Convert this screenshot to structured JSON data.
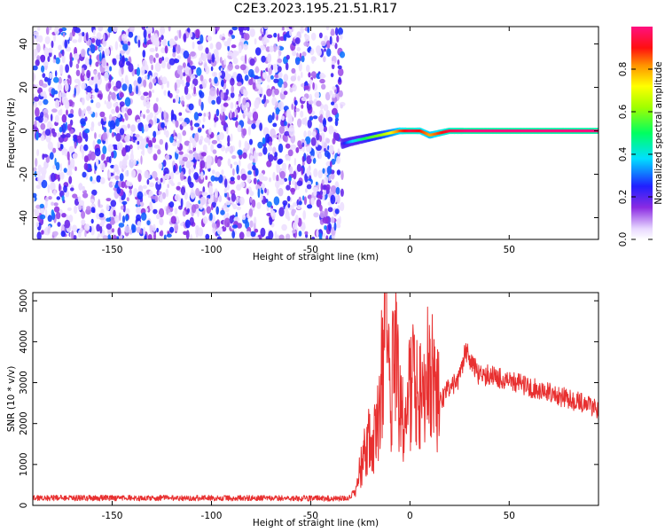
{
  "title": "C2E3.2023.195.21.51.R17",
  "chart_data": [
    {
      "type": "heatmap",
      "description": "spectrogram",
      "xlabel": "Height of straight line (km)",
      "ylabel": "Frequency (Hz)",
      "xlim": [
        -190,
        95
      ],
      "ylim": [
        -50,
        48
      ],
      "xticks": [
        -150,
        -100,
        -50,
        0,
        50
      ],
      "yticks": [
        -40,
        -20,
        0,
        20,
        40
      ],
      "noise_region": {
        "x_range": [
          -190,
          -34
        ],
        "amplitude_range": [
          0.0,
          0.3
        ]
      },
      "signal_track": {
        "x": [
          -34,
          -30,
          -25,
          -20,
          -15,
          -10,
          -5,
          0,
          5,
          10,
          20,
          30,
          50,
          70,
          95
        ],
        "frequency": [
          -6,
          -5,
          -4,
          -3,
          -2,
          -1,
          0,
          0,
          0,
          -2,
          0,
          0,
          0,
          0,
          0
        ],
        "amplitude": [
          0.2,
          0.35,
          0.45,
          0.55,
          0.6,
          0.7,
          0.85,
          0.95,
          0.9,
          0.8,
          0.95,
          1.0,
          1.0,
          1.0,
          1.0
        ]
      },
      "colorbar": {
        "label": "Normalized spectral amplitude",
        "range": [
          0.0,
          1.0
        ],
        "ticks": [
          0.0,
          0.2,
          0.4,
          0.6,
          0.8
        ]
      }
    },
    {
      "type": "line",
      "xlabel": "Height of straight line (km)",
      "ylabel": "SNR (10 * v/v)",
      "xlim": [
        -190,
        95
      ],
      "ylim": [
        0,
        5200
      ],
      "xticks": [
        -150,
        -100,
        -50,
        0,
        50
      ],
      "yticks": [
        0,
        1000,
        2000,
        3000,
        4000,
        5000
      ],
      "color": "#e83030",
      "series": [
        {
          "x": [
            -190,
            -100,
            -40,
            -30,
            -27,
            -25,
            -22,
            -20,
            -18,
            -15,
            -13,
            -12,
            -10,
            -8,
            -5,
            -2,
            0,
            5,
            10,
            15,
            20,
            25,
            28,
            35,
            40,
            50,
            60,
            70,
            80,
            90,
            95
          ],
          "values": [
            180,
            180,
            170,
            180,
            350,
            900,
            1500,
            1900,
            1600,
            2700,
            4100,
            5150,
            2200,
            3900,
            2400,
            1900,
            2900,
            3000,
            3200,
            2500,
            2900,
            3100,
            3800,
            3150,
            3200,
            3050,
            2900,
            2750,
            2600,
            2450,
            2350
          ]
        }
      ]
    }
  ]
}
